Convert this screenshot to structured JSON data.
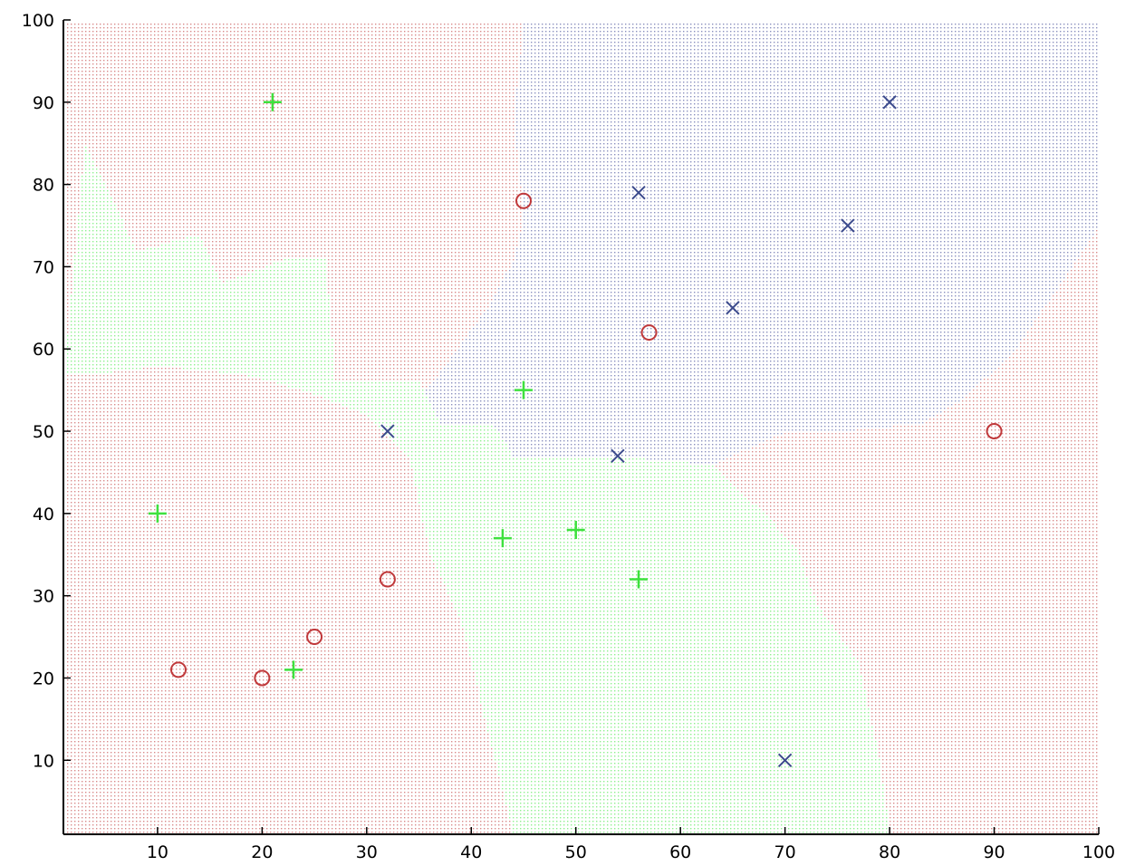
{
  "chart_data": {
    "type": "scatter",
    "title": "",
    "xlabel": "",
    "ylabel": "",
    "xlim": [
      1,
      100
    ],
    "ylim": [
      1,
      100
    ],
    "x_ticks": [
      10,
      20,
      30,
      40,
      50,
      60,
      70,
      80,
      90,
      100
    ],
    "y_ticks": [
      10,
      20,
      30,
      40,
      50,
      60,
      70,
      80,
      90,
      100
    ],
    "grid": false,
    "legend": "none",
    "background": {
      "description_type": "decision-region dot grid",
      "default_class": "red",
      "regions": [
        {
          "class": "green",
          "polygon": [
            [
              1,
              57
            ],
            [
              3,
              85
            ],
            [
              8,
              72
            ],
            [
              14,
              74
            ],
            [
              16,
              68
            ],
            [
              22,
              71
            ],
            [
              26,
              71
            ],
            [
              27,
              56
            ],
            [
              35,
              56
            ],
            [
              37,
              51
            ],
            [
              42,
              51
            ],
            [
              44,
              47
            ],
            [
              54,
              47
            ],
            [
              63,
              46
            ],
            [
              68,
              40
            ],
            [
              71,
              36
            ],
            [
              73,
              29
            ],
            [
              77,
              22
            ],
            [
              79,
              10
            ],
            [
              80,
              1
            ],
            [
              44,
              1
            ],
            [
              42,
              11
            ],
            [
              39,
              27
            ],
            [
              36,
              35
            ],
            [
              34,
              47
            ],
            [
              30,
              52
            ],
            [
              24,
              55
            ],
            [
              18,
              57
            ],
            [
              10,
              58
            ],
            [
              4,
              57
            ]
          ]
        },
        {
          "class": "blue",
          "polygon": [
            [
              45,
              100
            ],
            [
              100,
              100
            ],
            [
              100,
              75
            ],
            [
              92,
              60
            ],
            [
              87,
              54
            ],
            [
              83,
              51
            ],
            [
              75,
              50
            ],
            [
              70,
              50
            ],
            [
              63,
              46
            ],
            [
              54,
              47
            ],
            [
              44,
              47
            ],
            [
              42,
              51
            ],
            [
              37,
              51
            ],
            [
              35,
              54
            ],
            [
              38,
              59
            ],
            [
              42,
              66
            ],
            [
              44,
              71
            ],
            [
              45,
              76
            ],
            [
              44,
              88
            ]
          ]
        }
      ],
      "colors": {
        "red": "#d98a8a",
        "green": "#8ff08f",
        "blue": "#8a90bf"
      }
    },
    "series": [
      {
        "marker": "circle",
        "color": "#c0393b",
        "points": [
          [
            12,
            21
          ],
          [
            20,
            20
          ],
          [
            25,
            25
          ],
          [
            32,
            32
          ],
          [
            45,
            78
          ],
          [
            57,
            62
          ],
          [
            90,
            50
          ]
        ]
      },
      {
        "marker": "plus",
        "color": "#3ee13e",
        "points": [
          [
            10,
            40
          ],
          [
            21,
            90
          ],
          [
            23,
            21
          ],
          [
            43,
            37
          ],
          [
            45,
            55
          ],
          [
            50,
            38
          ],
          [
            56,
            32
          ]
        ]
      },
      {
        "marker": "x",
        "color": "#3b4a8c",
        "points": [
          [
            32,
            50
          ],
          [
            54,
            47
          ],
          [
            56,
            79
          ],
          [
            65,
            65
          ],
          [
            70,
            10
          ],
          [
            76,
            75
          ],
          [
            80,
            90
          ]
        ]
      }
    ]
  }
}
